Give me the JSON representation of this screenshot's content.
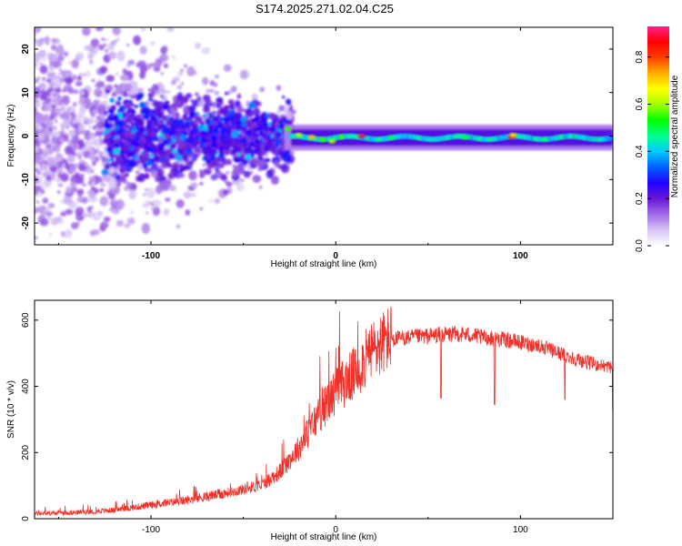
{
  "title": "S174.2025.271.02.04.C25",
  "colors": {
    "snr_line": "#f0312a",
    "axis": "#000000",
    "gradient_stops": [
      "#ffffff",
      "#d7c4f5",
      "#a06be8",
      "#6a16d6",
      "#2200ff",
      "#0060ff",
      "#00c8ff",
      "#00ff90",
      "#00ff00",
      "#a0ff00",
      "#ffff00",
      "#ffb000",
      "#ff4000",
      "#ff0000",
      "#ff1f8a"
    ]
  },
  "chart_data": [
    {
      "type": "heatmap",
      "title": "S174.2025.271.02.04.C25",
      "xlabel": "Height of straight line (km)",
      "ylabel": "Frequency (Hz)",
      "xlim": [
        -163,
        150
      ],
      "ylim": [
        -25,
        25
      ],
      "xticks": [
        -100,
        0,
        100
      ],
      "xtick_labels": [
        "-100",
        "0",
        "100"
      ],
      "yticks": [
        20,
        10,
        0,
        -10,
        -20
      ],
      "ytick_labels": [
        "20",
        "10",
        "0",
        "-10",
        "-20"
      ],
      "colorbar": {
        "label": "Normalized spectral amplitude",
        "range": [
          0.0,
          0.93
        ],
        "ticks": [
          0.0,
          0.2,
          0.4,
          0.6,
          0.8
        ],
        "tick_labels": [
          "0.0",
          "0.2",
          "0.4",
          "0.6",
          "0.8"
        ]
      },
      "description_of_content": "Scattered weak energy below -30 km; concentrated band near 0 Hz above -25 km with peaks ~0.9 near 15 km and 95 km"
    },
    {
      "type": "line",
      "xlabel": "Height of straight line (km)",
      "ylabel": "SNR (10 * v/v)",
      "xlim": [
        -163,
        150
      ],
      "ylim": [
        0,
        660
      ],
      "xticks": [
        -100,
        0,
        100
      ],
      "xtick_labels": [
        "-100",
        "0",
        "100"
      ],
      "yticks": [
        0,
        200,
        400,
        600
      ],
      "ytick_labels": [
        "0",
        "200",
        "400",
        "600"
      ],
      "trend": {
        "x": [
          -163,
          -140,
          -120,
          -100,
          -80,
          -60,
          -40,
          -30,
          -20,
          -10,
          0,
          10,
          20,
          30,
          40,
          50,
          60,
          70,
          80,
          90,
          100,
          110,
          120,
          130,
          140,
          150
        ],
        "y": [
          15,
          18,
          25,
          40,
          55,
          75,
          100,
          140,
          210,
          300,
          380,
          430,
          500,
          540,
          545,
          550,
          555,
          555,
          545,
          540,
          530,
          520,
          500,
          480,
          465,
          455
        ]
      },
      "dips": [
        {
          "x": 57,
          "y": 365
        },
        {
          "x": 86,
          "y": 345
        },
        {
          "x": 124,
          "y": 360
        },
        {
          "x": 150,
          "y": 325
        }
      ]
    }
  ]
}
